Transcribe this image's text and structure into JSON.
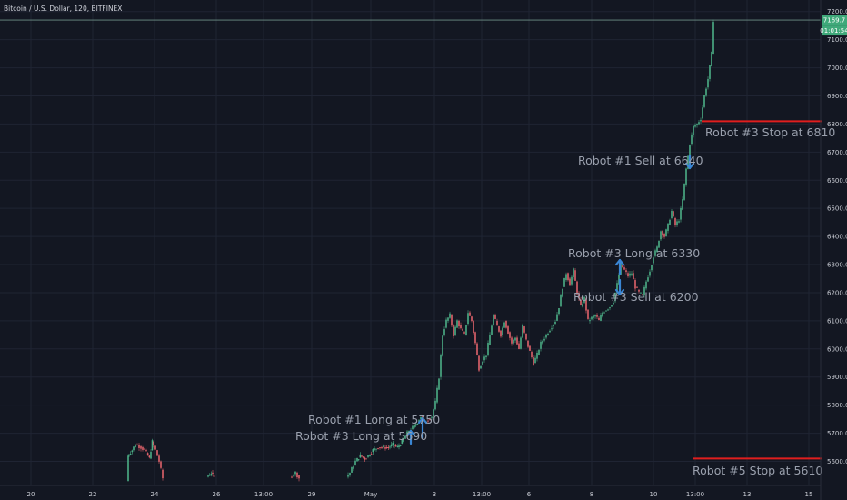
{
  "chart_data": {
    "type": "candlestick",
    "title": "Bitcoin / U.S. Dollar, 120, BITFINEX",
    "ylim": [
      5530,
      7235
    ],
    "y_ticks": [
      5600,
      5700,
      5800,
      5900,
      6000,
      6100,
      6200,
      6300,
      6400,
      6500,
      6600,
      6700,
      6800,
      6900,
      7000,
      7100,
      7200
    ],
    "x_ticks": [
      "20",
      "22",
      "24",
      "26",
      "13:00",
      "29",
      "May",
      "3",
      "13:00",
      "6",
      "8",
      "10",
      "13:00",
      "13",
      "15"
    ],
    "last_price": {
      "value": 7169.7,
      "label": "7169.7",
      "countdown": "01:01:54"
    },
    "horizontal_lines": [
      {
        "name": "robot3-stop",
        "value": 6810,
        "color": "#e01e1e"
      },
      {
        "name": "robot5-stop",
        "value": 5610,
        "color": "#e01e1e"
      }
    ],
    "annotations": [
      {
        "name": "robot1-long",
        "text": "Robot #1 Long at 5750"
      },
      {
        "name": "robot3-long-5690",
        "text": "Robot #3 Long at 5690"
      },
      {
        "name": "robot1-sell",
        "text": "Robot #1 Sell at 6640"
      },
      {
        "name": "robot3-long-6330",
        "text": "Robot #3 Long at 6330"
      },
      {
        "name": "robot3-sell",
        "text": "Robot #3 Sell at 6200"
      },
      {
        "name": "robot3-stop",
        "text": "Robot #3 Stop at 6810"
      },
      {
        "name": "robot5-stop",
        "text": "Robot #5 Stop at 5610"
      }
    ],
    "path": [
      [
        140,
        5530
      ],
      [
        141,
        5620
      ],
      [
        146,
        5640
      ],
      [
        150,
        5660
      ],
      [
        156,
        5650
      ],
      [
        160,
        5640
      ],
      [
        165,
        5610
      ],
      [
        168,
        5670
      ],
      [
        172,
        5640
      ],
      [
        176,
        5600
      ],
      [
        180,
        5540
      ],
      [
        228,
        5545
      ],
      [
        233,
        5560
      ],
      [
        236,
        5540
      ],
      [
        320,
        5545
      ],
      [
        326,
        5560
      ],
      [
        330,
        5540
      ],
      [
        382,
        5545
      ],
      [
        386,
        5560
      ],
      [
        392,
        5600
      ],
      [
        397,
        5620
      ],
      [
        402,
        5610
      ],
      [
        406,
        5620
      ],
      [
        411,
        5640
      ],
      [
        417,
        5650
      ],
      [
        423,
        5650
      ],
      [
        428,
        5650
      ],
      [
        433,
        5660
      ],
      [
        438,
        5650
      ],
      [
        443,
        5670
      ],
      [
        447,
        5690
      ],
      [
        451,
        5710
      ],
      [
        455,
        5720
      ],
      [
        460,
        5740
      ],
      [
        464,
        5760
      ],
      [
        468,
        5740
      ],
      [
        472,
        5750
      ],
      [
        476,
        5760
      ],
      [
        480,
        5810
      ],
      [
        484,
        5900
      ],
      [
        488,
        6050
      ],
      [
        492,
        6100
      ],
      [
        496,
        6120
      ],
      [
        500,
        6050
      ],
      [
        504,
        6100
      ],
      [
        508,
        6070
      ],
      [
        512,
        6050
      ],
      [
        516,
        6130
      ],
      [
        520,
        6100
      ],
      [
        524,
        6020
      ],
      [
        528,
        5930
      ],
      [
        532,
        5960
      ],
      [
        536,
        5980
      ],
      [
        540,
        6050
      ],
      [
        544,
        6120
      ],
      [
        548,
        6080
      ],
      [
        552,
        6050
      ],
      [
        556,
        6100
      ],
      [
        560,
        6060
      ],
      [
        564,
        6020
      ],
      [
        568,
        6040
      ],
      [
        572,
        6000
      ],
      [
        576,
        6080
      ],
      [
        580,
        6030
      ],
      [
        584,
        5990
      ],
      [
        588,
        5950
      ],
      [
        592,
        5980
      ],
      [
        596,
        6020
      ],
      [
        600,
        6040
      ],
      [
        604,
        6060
      ],
      [
        608,
        6080
      ],
      [
        612,
        6100
      ],
      [
        616,
        6150
      ],
      [
        620,
        6220
      ],
      [
        624,
        6270
      ],
      [
        628,
        6230
      ],
      [
        632,
        6280
      ],
      [
        636,
        6200
      ],
      [
        640,
        6150
      ],
      [
        644,
        6180
      ],
      [
        648,
        6100
      ],
      [
        652,
        6110
      ],
      [
        656,
        6120
      ],
      [
        660,
        6100
      ],
      [
        664,
        6130
      ],
      [
        668,
        6140
      ],
      [
        672,
        6150
      ],
      [
        676,
        6170
      ],
      [
        680,
        6230
      ],
      [
        684,
        6300
      ],
      [
        688,
        6280
      ],
      [
        692,
        6260
      ],
      [
        696,
        6270
      ],
      [
        700,
        6220
      ],
      [
        704,
        6200
      ],
      [
        708,
        6190
      ],
      [
        712,
        6240
      ],
      [
        716,
        6280
      ],
      [
        720,
        6330
      ],
      [
        724,
        6360
      ],
      [
        728,
        6420
      ],
      [
        732,
        6400
      ],
      [
        736,
        6440
      ],
      [
        740,
        6490
      ],
      [
        744,
        6440
      ],
      [
        748,
        6460
      ],
      [
        752,
        6530
      ],
      [
        756,
        6640
      ],
      [
        760,
        6730
      ],
      [
        764,
        6790
      ],
      [
        768,
        6800
      ],
      [
        772,
        6820
      ],
      [
        776,
        6900
      ],
      [
        780,
        6960
      ],
      [
        784,
        7050
      ],
      [
        786,
        7170
      ]
    ]
  }
}
